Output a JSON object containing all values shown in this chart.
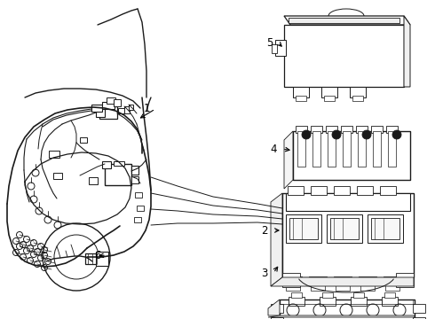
{
  "background_color": "#ffffff",
  "line_color": "#1a1a1a",
  "label_color": "#000000",
  "label_fontsize": 8.5,
  "arrow_color": "#000000",
  "figsize": [
    4.9,
    3.6
  ],
  "dpi": 100
}
